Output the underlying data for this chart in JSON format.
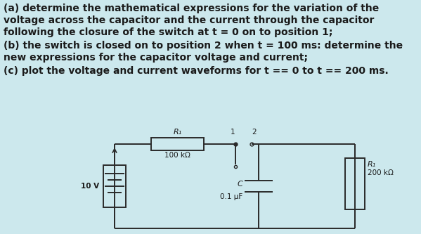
{
  "background_color": "#cce8ed",
  "text_color": "#1a1a1a",
  "line_a": "(a) determine the mathematical expressions for the variation of the",
  "line_b": "voltage across the capacitor and the current through the capacitor",
  "line_c": "following the closure of the switch at t = 0 on to position 1;",
  "line_d": "(b) the switch is closed on to position 2 when t = 100 ms: determine the",
  "line_e": "new expressions for the capacitor voltage and current;",
  "line_f": "(c) plot the voltage and current waveforms for t == 0 to t == 200 ms.",
  "circuit": {
    "voltage_label": "10 V",
    "r1_label": "R₁",
    "r1_value": "100 kΩ",
    "cap_label": "C",
    "cap_value": "0.1 μF",
    "r2_label": "R₁",
    "r2_value": "200 kΩ",
    "sw_pos1": "1",
    "sw_pos2": "2"
  },
  "font_size_text": 10.0,
  "font_size_small": 7.5,
  "font_size_label": 8.0
}
